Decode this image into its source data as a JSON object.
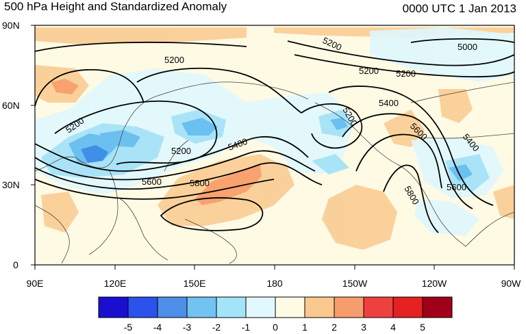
{
  "header": {
    "title": "500 hPa Height and Standardized Anomaly",
    "datetime": "0000 UTC 1 Jan 2013"
  },
  "axes": {
    "lat_labels": [
      "90N",
      "60N",
      "30N",
      "0"
    ],
    "lon_labels": [
      "90E",
      "120E",
      "150E",
      "180",
      "150W",
      "120W",
      "90W"
    ]
  },
  "contour_labels": [
    "5200",
    "5200",
    "5200",
    "5200",
    "5200",
    "5200",
    "5200",
    "5000",
    "5400",
    "5400",
    "5400",
    "5600",
    "5600",
    "5600",
    "5800",
    "5800"
  ],
  "colorbar": {
    "labels": [
      "-5",
      "-4",
      "-3",
      "-2",
      "-1",
      "0",
      "1",
      "2",
      "3",
      "4",
      "5"
    ],
    "colors": [
      "#1a0fd0",
      "#2b52ea",
      "#4d8ee8",
      "#72c2f2",
      "#a3e4fa",
      "#e1f9fe",
      "#fefae4",
      "#fac98e",
      "#f79c6c",
      "#ef4040",
      "#e52121",
      "#a1001a"
    ]
  },
  "colors": {
    "pos1": "#fde3b0",
    "pos2": "#f7b97d",
    "pos3": "#f3956a",
    "neg1": "#dff7fd",
    "neg2": "#a7e2f8",
    "neg3": "#6bc0ef",
    "neg4": "#3f8fe6"
  }
}
